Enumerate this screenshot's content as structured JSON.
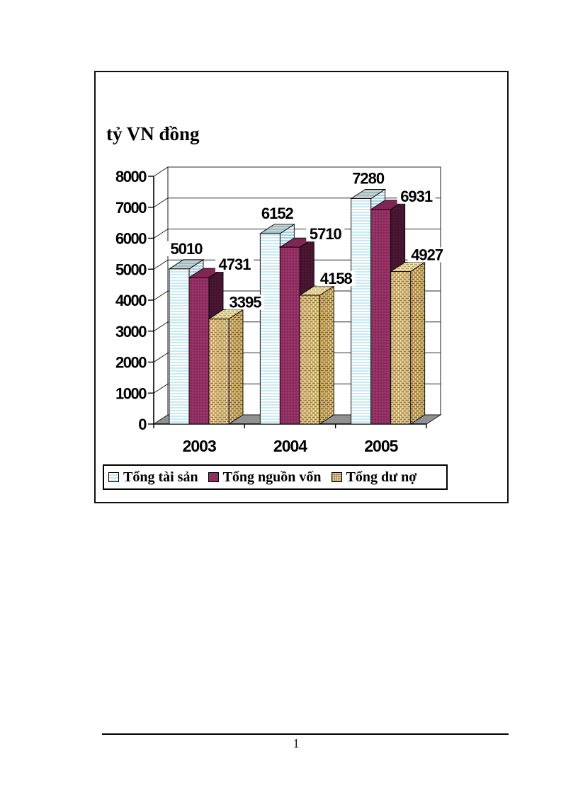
{
  "page": {
    "number": "1"
  },
  "chart_data": {
    "type": "bar",
    "variant": "3d-clustered-column",
    "title": "tỷ VN đồng",
    "categories": [
      "2003",
      "2004",
      "2005"
    ],
    "series": [
      {
        "name": "Tổng tài sản",
        "values": [
          5010,
          6152,
          7280
        ],
        "swatch": "striped-lightblue"
      },
      {
        "name": "Tổng nguồn vốn",
        "values": [
          4731,
          5710,
          6931
        ],
        "swatch": "solid-magenta"
      },
      {
        "name": "Tổng dư nợ",
        "values": [
          3395,
          4158,
          4927
        ],
        "swatch": "woven-tan"
      }
    ],
    "ylim": [
      0,
      8000
    ],
    "ytick_step": 1000,
    "ytick_labels": [
      "0",
      "1000",
      "2000",
      "3000",
      "4000",
      "5000",
      "6000",
      "7000",
      "8000"
    ],
    "data_labels_visible": true,
    "grid": true,
    "legend_position": "bottom",
    "colors": {
      "stripe_fill": "#c9e9f3",
      "stripe_side": "#a9cfdb",
      "stripe_top_bg": "#c6d2d5",
      "magenta_front": "#8F2C60",
      "magenta_dot": "#b15483",
      "magenta_top": "#7E2755",
      "magenta_side": "#451530",
      "tan_base": "#D2B576",
      "tan_dark": "#8a6a38",
      "tan_light": "#EFE3B8",
      "tan_top": "#E6D79E",
      "floor": "#919191",
      "axis": "#000000",
      "label_text": "#000000"
    }
  }
}
